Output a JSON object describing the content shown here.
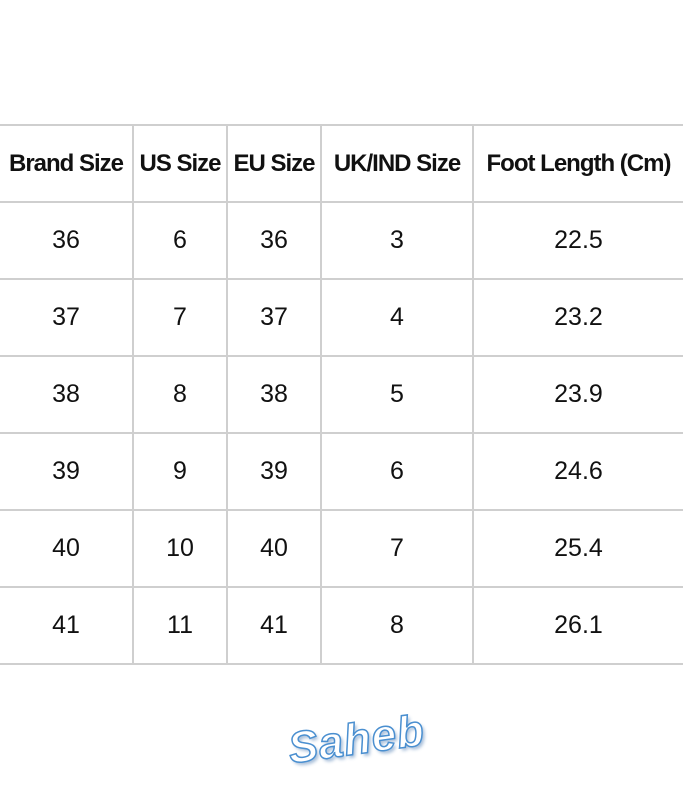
{
  "table": {
    "headers": [
      "Brand Size",
      "US Size",
      "EU Size",
      "UK/IND Size",
      "Foot Length (Cm)"
    ],
    "rows": [
      [
        "36",
        "6",
        "36",
        "3",
        "22.5"
      ],
      [
        "37",
        "7",
        "37",
        "4",
        "23.2"
      ],
      [
        "38",
        "8",
        "38",
        "5",
        "23.9"
      ],
      [
        "39",
        "9",
        "39",
        "6",
        "24.6"
      ],
      [
        "40",
        "10",
        "40",
        "7",
        "25.4"
      ],
      [
        "41",
        "11",
        "41",
        "8",
        "26.1"
      ]
    ]
  },
  "watermark": "Saheb"
}
